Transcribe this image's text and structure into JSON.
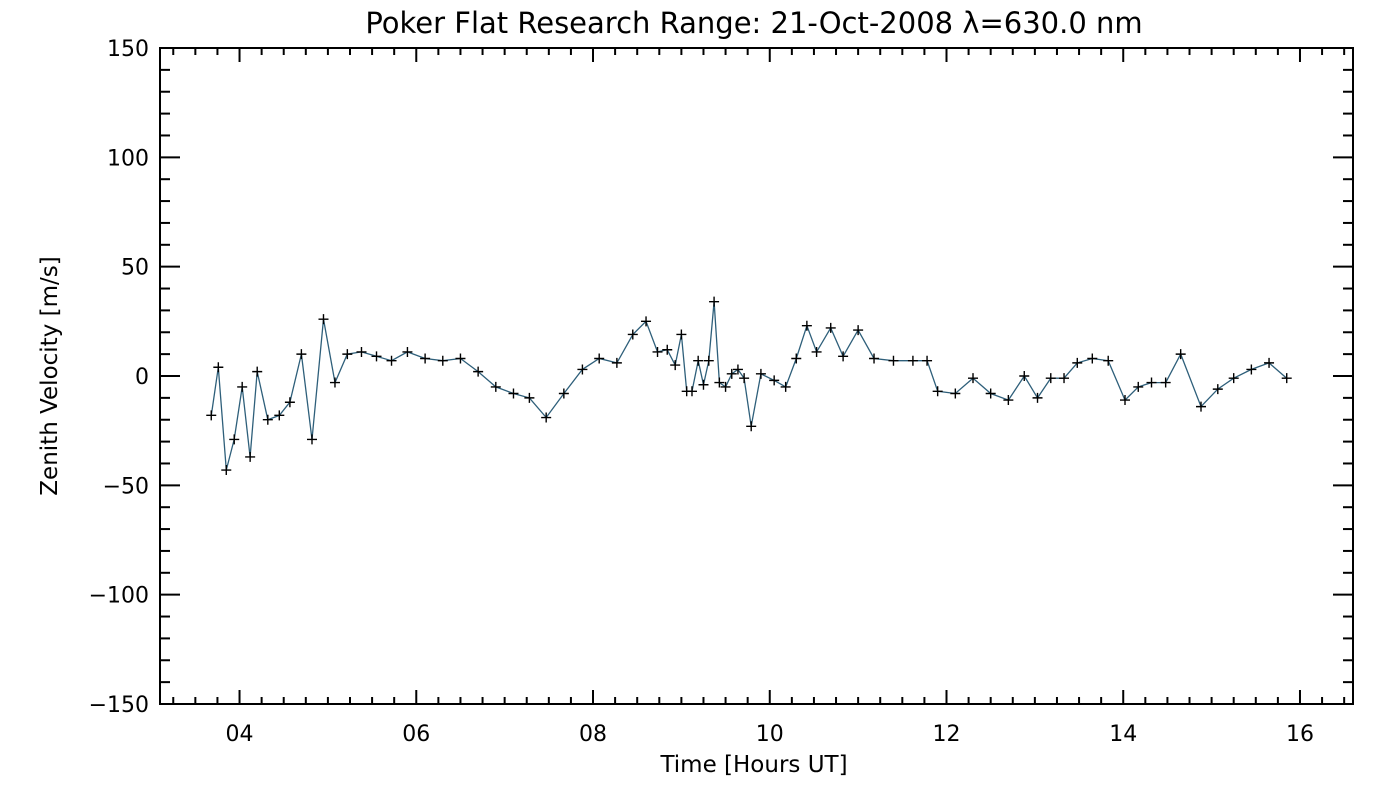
{
  "chart_data": {
    "type": "line",
    "title": "Poker Flat Research Range: 21-Oct-2008 λ=630.0 nm",
    "xlabel": "Time [Hours UT]",
    "ylabel": "Zenith Velocity [m/s]",
    "xlim": [
      3.1,
      16.6
    ],
    "ylim": [
      -150,
      150
    ],
    "x_ticks": [
      {
        "value": 4,
        "label": "04"
      },
      {
        "value": 6,
        "label": "06"
      },
      {
        "value": 8,
        "label": "08"
      },
      {
        "value": 10,
        "label": "10"
      },
      {
        "value": 12,
        "label": "12"
      },
      {
        "value": 14,
        "label": "14"
      },
      {
        "value": 16,
        "label": "16"
      }
    ],
    "y_ticks": [
      {
        "value": 150,
        "label": "150"
      },
      {
        "value": 100,
        "label": "100"
      },
      {
        "value": 50,
        "label": "50"
      },
      {
        "value": 0,
        "label": "0"
      },
      {
        "value": -50,
        "label": "−50"
      },
      {
        "value": -100,
        "label": "−100"
      },
      {
        "value": -150,
        "label": "−150"
      }
    ],
    "grid": false,
    "marker": "plus",
    "colors": {
      "line": "#2e5f7a",
      "marker": "#000000",
      "axes": "#000000"
    },
    "series": [
      {
        "x": [
          3.68,
          3.76,
          3.85,
          3.94,
          4.03,
          4.12,
          4.2,
          4.32,
          4.45,
          4.57,
          4.7,
          4.82,
          4.95,
          5.08,
          5.22,
          5.38,
          5.55,
          5.72,
          5.9,
          6.1,
          6.3,
          6.5,
          6.7,
          6.9,
          7.1,
          7.28,
          7.47,
          7.67,
          7.88,
          8.07,
          8.27,
          8.45,
          8.6,
          8.73,
          8.84,
          8.93,
          9.0,
          9.06,
          9.12,
          9.19,
          9.25,
          9.31,
          9.37,
          9.43,
          9.5,
          9.57,
          9.64,
          9.71,
          9.79,
          9.9,
          10.05,
          10.18,
          10.3,
          10.42,
          10.53,
          10.69,
          10.83,
          11.0,
          11.18,
          11.4,
          11.62,
          11.78,
          11.9,
          12.1,
          12.3,
          12.5,
          12.7,
          12.88,
          13.03,
          13.18,
          13.33,
          13.48,
          13.65,
          13.83,
          14.02,
          14.17,
          14.32,
          14.48,
          14.65,
          14.88,
          15.07,
          15.25,
          15.45,
          15.65,
          15.85
        ],
        "y": [
          -18,
          4,
          -43,
          -29,
          -5,
          -37,
          2,
          -20,
          -18,
          -12,
          10,
          -29,
          26,
          -3,
          10,
          11,
          9,
          7,
          11,
          8,
          7,
          8,
          2,
          -5,
          -8,
          -10,
          -19,
          -8,
          3,
          8,
          6,
          19,
          25,
          11,
          12,
          5,
          19,
          -7,
          -7,
          7,
          -4,
          7,
          34,
          -3,
          -5,
          1,
          3,
          -1,
          -23,
          1,
          -2,
          -5,
          8,
          23,
          11,
          22,
          9,
          21,
          8,
          7,
          7,
          7,
          -7,
          -8,
          -1,
          -8,
          -11,
          0,
          -10,
          -1,
          -1,
          6,
          8,
          7,
          -11,
          -5,
          -3,
          -3,
          10,
          -14,
          -6,
          -1,
          3,
          6,
          -1
        ]
      }
    ]
  }
}
